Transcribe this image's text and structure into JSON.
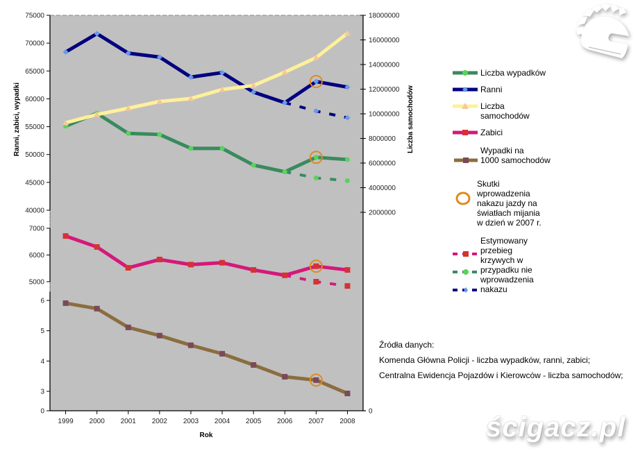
{
  "chart_data": {
    "type": "line",
    "categories": [
      "1999",
      "2000",
      "2001",
      "2002",
      "2003",
      "2004",
      "2005",
      "2006",
      "2007",
      "2008"
    ],
    "xlabel": "Rok",
    "ylabel_left": "Ranni, zabici, wypadki",
    "ylabel_right": "Liczba samochodów",
    "left_axis_bands": [
      {
        "name": "upper",
        "range": [
          40000,
          75000
        ],
        "ticks": [
          "75000",
          "70000",
          "65000",
          "60000",
          "55000",
          "50000",
          "45000",
          "40000"
        ]
      },
      {
        "name": "middle",
        "range": [
          5000,
          7000
        ],
        "ticks": [
          "7000",
          "6000",
          "5000"
        ]
      },
      {
        "name": "lower",
        "range": [
          3,
          6
        ],
        "ticks": [
          "6",
          "5",
          "4",
          "3"
        ],
        "zero_tick": "0"
      }
    ],
    "right_axis": {
      "range": [
        2000000,
        18000000
      ],
      "ticks": [
        "18000000",
        "16000000",
        "14000000",
        "12000000",
        "10000000",
        "8000000",
        "6000000",
        "4000000",
        "2000000"
      ],
      "zero_tick": "0"
    },
    "series": [
      {
        "name": "Liczba wypadków",
        "band": "upper",
        "color": "#3a8a5f",
        "marker": "circle",
        "marker_color": "#5ad35a",
        "values": [
          55100,
          57400,
          53800,
          53600,
          51100,
          51100,
          48100,
          46900,
          49500,
          49100
        ]
      },
      {
        "name": "Ranni",
        "band": "upper",
        "color": "#00007f",
        "marker": "diamond",
        "marker_color": "#6699ee",
        "values": [
          68400,
          71700,
          68200,
          67500,
          63900,
          64700,
          61200,
          59300,
          63100,
          62100
        ]
      },
      {
        "name": "Liczba samochodów",
        "band": "right",
        "color": "#fff09a",
        "marker": "triangle",
        "marker_color": "#f5c89a",
        "values": [
          9270000,
          9940000,
          10450000,
          11000000,
          11240000,
          11970000,
          12300000,
          13380000,
          14560000,
          16540000
        ]
      },
      {
        "name": "Zabici",
        "band": "middle",
        "color": "#d4197a",
        "marker": "square",
        "marker_color": "#d63232",
        "values": [
          6710,
          6300,
          5520,
          5830,
          5640,
          5710,
          5440,
          5240,
          5580,
          5440
        ]
      },
      {
        "name": "Wypadki na 1000 samochodów",
        "band": "lower",
        "color": "#8b6d3f",
        "marker": "square",
        "marker_color": "#7a4a58",
        "values": [
          5.91,
          5.73,
          5.11,
          4.84,
          4.52,
          4.24,
          3.87,
          3.48,
          3.37,
          2.93
        ]
      }
    ],
    "estimated_series": [
      {
        "of": "Zabici",
        "band": "middle",
        "color": "#d4197a",
        "marker_color": "#d63232",
        "marker": "square",
        "x": [
          "2006",
          "2007",
          "2008"
        ],
        "values": [
          5240,
          5000,
          4840
        ]
      },
      {
        "of": "Liczba wypadków",
        "band": "upper",
        "color": "#3a8a5f",
        "marker_color": "#5ad35a",
        "marker": "circle",
        "x": [
          "2006",
          "2007",
          "2008"
        ],
        "values": [
          46900,
          45800,
          45300
        ]
      },
      {
        "of": "Ranni",
        "band": "upper",
        "color": "#00007f",
        "marker_color": "#6699ee",
        "marker": "diamond",
        "x": [
          "2006",
          "2007",
          "2008"
        ],
        "values": [
          59300,
          57800,
          56600
        ]
      }
    ],
    "highlight": {
      "x": "2007",
      "color": "#e08a1e",
      "series": [
        "Ranni",
        "Liczba wypadków",
        "Zabici",
        "Wypadki na 1000 samochodów"
      ]
    },
    "plot_background": "#c0c0c0",
    "legend_placement": "right"
  },
  "legend": {
    "items": [
      {
        "label": "Liczba wypadków"
      },
      {
        "label": "Ranni"
      },
      {
        "label": "Liczba\nsamochodów"
      },
      {
        "label": "Zabici"
      },
      {
        "label": "Wypadki na\n1000 samochodów"
      },
      {
        "label": "Skutki\nwprowadzenia\nnakazu jazdy na\nświatłach mijania\nw dzień w 2007 r."
      },
      {
        "label": "Estymowany\nprzebieg\nkrzywych w\nprzypadku nie\nwprowadzenia\nnakazu"
      }
    ]
  },
  "sources": {
    "title": "Źródła danych:",
    "line1": "Komenda Główna Policji - liczba wypadków, ranni, zabici;",
    "line2": "Centralna Ewidencja Pojazdów i Kierowców - liczba samochodów;"
  },
  "watermark": {
    "logo_text": "ścigacz.pl",
    "icon": "helmet-logo-icon"
  }
}
